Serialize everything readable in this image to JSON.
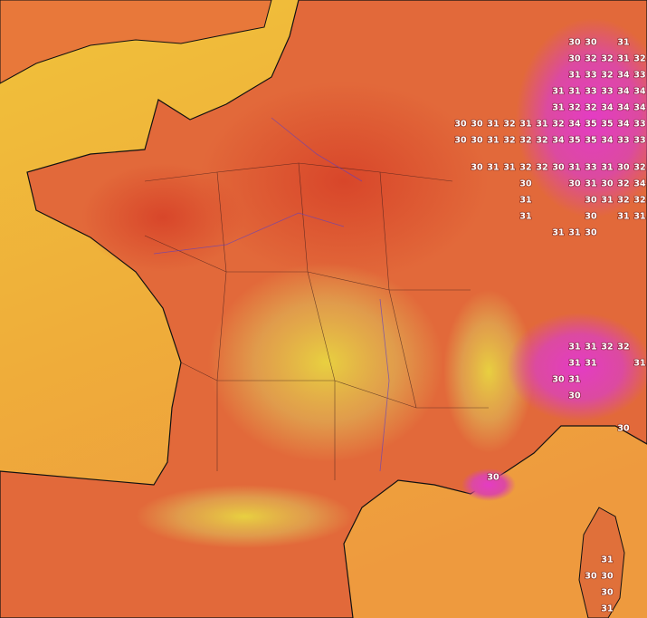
{
  "temperature_labels": [
    30,
    30,
    31,
    30,
    32,
    32,
    31,
    32,
    31,
    33,
    32,
    34,
    33,
    31,
    31,
    33,
    33,
    34,
    34,
    31,
    32,
    32,
    34,
    34,
    34,
    30,
    30,
    31,
    32,
    31,
    31,
    32,
    34,
    35,
    35,
    34,
    33,
    30,
    30,
    31,
    32,
    32,
    32,
    34,
    35,
    35,
    34,
    33,
    33,
    30,
    31,
    31,
    32,
    32,
    30,
    31,
    33,
    31,
    30,
    32,
    30,
    30,
    31,
    30,
    32,
    34,
    31,
    30,
    31,
    32,
    32,
    31,
    30,
    31,
    31,
    31,
    31,
    30,
    31,
    31,
    32,
    32,
    31,
    31,
    31,
    30,
    31,
    30,
    30,
    30,
    31,
    30,
    30,
    30,
    31
  ]
}
